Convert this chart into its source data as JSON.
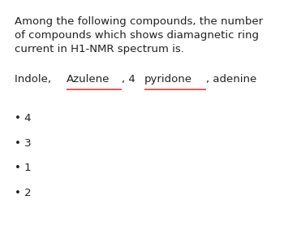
{
  "background_color": "#ffffff",
  "question_line1": "Among the following compounds, the number",
  "question_line2": "of compounds which shows diamagnetic ring",
  "question_line3": "current in H1-NMR spectrum is.",
  "compounds_prefix": "Indole, ",
  "compound_underline1": "Azulene",
  "compounds_middle": ", 4 ",
  "compound_underline2": "pyridone",
  "compounds_suffix": ", adenine",
  "options": [
    "4",
    "3",
    "1",
    "2"
  ],
  "bullet": "•",
  "text_color": "#212121",
  "underline_color": "#e53935",
  "font_size_question": 9.5,
  "font_size_compounds": 9.5,
  "font_size_options": 9.5
}
